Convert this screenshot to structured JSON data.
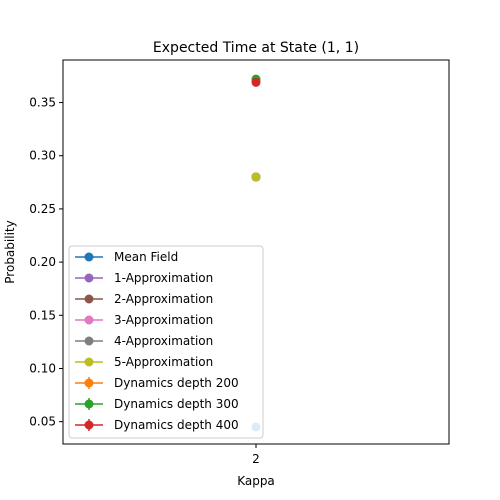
{
  "chart_data": {
    "type": "scatter",
    "title": "Expected Time at State (1, 1)",
    "xlabel": "Kappa",
    "ylabel": "Probability",
    "x_ticks": [
      "2"
    ],
    "x_values": [
      2
    ],
    "xlim": [
      1.9,
      2.1
    ],
    "ylim": [
      0.029,
      0.39
    ],
    "y_ticks": [
      0.05,
      0.1,
      0.15,
      0.2,
      0.25,
      0.3,
      0.35
    ],
    "y_tick_labels": [
      "0.05",
      "0.10",
      "0.15",
      "0.20",
      "0.25",
      "0.30",
      "0.35"
    ],
    "grid": false,
    "legend_position": "lower-left",
    "series": [
      {
        "name": "Mean Field",
        "color": "#1f77b4",
        "values": [
          0.045
        ],
        "errorbar": false
      },
      {
        "name": "1-Approximation",
        "color": "#9467bd",
        "values": [
          0.28
        ],
        "errorbar": false
      },
      {
        "name": "2-Approximation",
        "color": "#8c564b",
        "values": [
          0.28
        ],
        "errorbar": false
      },
      {
        "name": "3-Approximation",
        "color": "#e377c2",
        "values": [
          0.28
        ],
        "errorbar": false
      },
      {
        "name": "4-Approximation",
        "color": "#7f7f7f",
        "values": [
          0.28
        ],
        "errorbar": false
      },
      {
        "name": "5-Approximation",
        "color": "#bcbd22",
        "values": [
          0.28
        ],
        "errorbar": false
      },
      {
        "name": "Dynamics depth 200",
        "color": "#ff7f0e",
        "values": [
          0.371
        ],
        "errorbar": true
      },
      {
        "name": "Dynamics depth 300",
        "color": "#2ca02c",
        "values": [
          0.372
        ],
        "errorbar": true
      },
      {
        "name": "Dynamics depth 400",
        "color": "#d62728",
        "values": [
          0.369
        ],
        "errorbar": true
      }
    ]
  }
}
